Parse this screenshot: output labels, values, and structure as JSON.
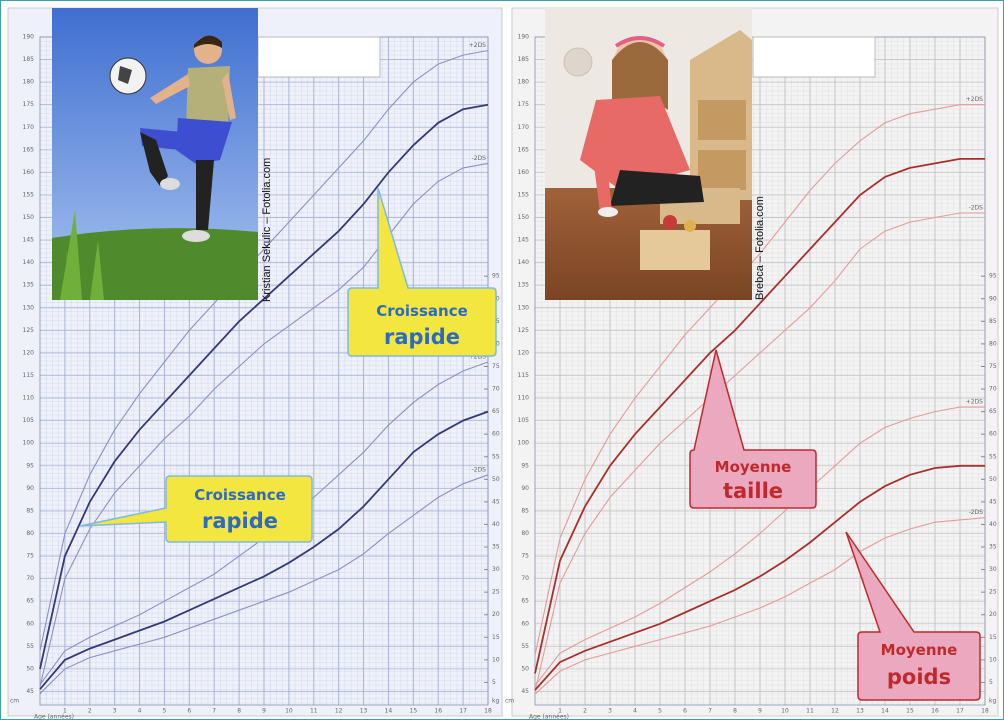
{
  "chart_data": [
    {
      "type": "line",
      "xlabel": "Age (années)",
      "ylabel": "cm",
      "y2label": "kg",
      "x": [
        0,
        1,
        2,
        3,
        4,
        5,
        6,
        7,
        8,
        9,
        10,
        11,
        12,
        13,
        14,
        15,
        16,
        17,
        18
      ],
      "xlim": [
        0,
        18
      ],
      "xticks": [
        1,
        2,
        3,
        4,
        5,
        6,
        7,
        8,
        9,
        10,
        11,
        12,
        13,
        14,
        15,
        16,
        17,
        18
      ],
      "ylim": [
        42,
        190
      ],
      "yticks": [
        45,
        50,
        55,
        60,
        65,
        70,
        75,
        80,
        85,
        90,
        95,
        100,
        105,
        110,
        115,
        120,
        125,
        130,
        135,
        140,
        145,
        150,
        155,
        160,
        165,
        170,
        175,
        180,
        185,
        190
      ],
      "y2lim": [
        0,
        148
      ],
      "y2ticks": [
        5,
        10,
        15,
        20,
        25,
        30,
        35,
        40,
        45,
        50,
        55,
        60,
        65,
        70,
        75,
        80,
        85,
        90,
        95
      ],
      "grid": true,
      "background": "#eef1fa",
      "grid_color": "#aab3d6",
      "series": [
        {
          "name": "+2DS",
          "color": "#8a91c4",
          "values": [
            54,
            80,
            93,
            103,
            111,
            118,
            125,
            131,
            137,
            143,
            149,
            155,
            161,
            167,
            174,
            180,
            184,
            186,
            187
          ]
        },
        {
          "color": "#343a78",
          "values": [
            50,
            75,
            87,
            96,
            103,
            109,
            115,
            121,
            127,
            132,
            137,
            142,
            147,
            153,
            160,
            166,
            171,
            174,
            175
          ]
        },
        {
          "name": "-2DS",
          "color": "#8a91c4",
          "values": [
            46,
            70,
            81,
            89,
            95,
            101,
            106,
            112,
            117,
            122,
            126,
            130,
            134,
            139,
            146,
            153,
            158,
            161,
            162
          ]
        },
        {
          "name": "+2DS",
          "color": "#8a91c4",
          "axis": "y2",
          "values": [
            4.5,
            12,
            15,
            17.5,
            20,
            23,
            26,
            29,
            33,
            37,
            41,
            46,
            51,
            56,
            62,
            67,
            71,
            74,
            76
          ]
        },
        {
          "color": "#343a78",
          "axis": "y2",
          "values": [
            3.5,
            10,
            12.5,
            14.5,
            16.5,
            18.5,
            21,
            23.5,
            26,
            28.5,
            31.5,
            35,
            39,
            44,
            50,
            56,
            60,
            63,
            65
          ]
        },
        {
          "name": "-2DS",
          "color": "#8a91c4",
          "axis": "y2",
          "values": [
            2.5,
            8,
            10.5,
            12,
            13.5,
            15,
            17,
            19,
            21,
            23,
            25,
            27.5,
            30,
            33.5,
            38,
            42,
            46,
            49,
            51
          ]
        }
      ],
      "credit": "Kristian Sekulic – Fotolia.com",
      "annotations": [
        {
          "line1": "Croissance",
          "line2": "rapide"
        },
        {
          "line1": "Croissance",
          "line2": "rapide"
        }
      ]
    },
    {
      "type": "line",
      "xlabel": "Age (années)",
      "ylabel": "cm",
      "y2label": "kg",
      "x": [
        0,
        1,
        2,
        3,
        4,
        5,
        6,
        7,
        8,
        9,
        10,
        11,
        12,
        13,
        14,
        15,
        16,
        17,
        18
      ],
      "xlim": [
        0,
        18
      ],
      "xticks": [
        1,
        2,
        3,
        4,
        5,
        6,
        7,
        8,
        9,
        10,
        11,
        12,
        13,
        14,
        15,
        16,
        17,
        18
      ],
      "ylim": [
        42,
        190
      ],
      "yticks": [
        45,
        50,
        55,
        60,
        65,
        70,
        75,
        80,
        85,
        90,
        95,
        100,
        105,
        110,
        115,
        120,
        125,
        130,
        135,
        140,
        145,
        150,
        155,
        160,
        165,
        170,
        175,
        180,
        185,
        190
      ],
      "y2lim": [
        0,
        148
      ],
      "y2ticks": [
        5,
        10,
        15,
        20,
        25,
        30,
        35,
        40,
        45,
        50,
        55,
        60,
        65,
        70,
        75,
        80,
        85,
        90,
        95
      ],
      "grid": true,
      "background": "#f3f3f3",
      "grid_color": "#c4c4c4",
      "series": [
        {
          "name": "+2DS",
          "color": "#e59a9a",
          "values": [
            53,
            79,
            92,
            102,
            110,
            117,
            124,
            130,
            136,
            142,
            149,
            156,
            162,
            167,
            171,
            173,
            174,
            175,
            175
          ]
        },
        {
          "color": "#a8302c",
          "values": [
            49,
            74,
            86,
            95,
            102,
            108,
            114,
            120,
            125,
            131,
            137,
            143,
            149,
            155,
            159,
            161,
            162,
            163,
            163
          ]
        },
        {
          "name": "-2DS",
          "color": "#e59a9a",
          "values": [
            45,
            69,
            80,
            88,
            94,
            100,
            105,
            110,
            115,
            120,
            125,
            130,
            136,
            143,
            147,
            149,
            150,
            151,
            151
          ]
        },
        {
          "name": "+2DS",
          "color": "#e59a9a",
          "axis": "y2",
          "values": [
            4.3,
            11.5,
            14.5,
            17,
            19.5,
            22.5,
            26,
            29.5,
            33.5,
            38,
            43,
            48,
            53,
            58,
            61.5,
            63.5,
            65,
            66,
            66
          ]
        },
        {
          "color": "#a8302c",
          "axis": "y2",
          "values": [
            3.3,
            9.5,
            12,
            14,
            16,
            18,
            20.5,
            23,
            25.5,
            28.5,
            32,
            36,
            40.5,
            45,
            48.5,
            51,
            52.5,
            53,
            53
          ]
        },
        {
          "name": "-2DS",
          "color": "#e59a9a",
          "axis": "y2",
          "values": [
            2.4,
            7.5,
            10,
            11.5,
            13,
            14.5,
            16,
            17.5,
            19.5,
            21.5,
            24,
            27,
            30,
            34,
            37,
            39,
            40.5,
            41,
            41.5
          ]
        }
      ],
      "credit": "Brebca – Fotolia.com",
      "annotations": [
        {
          "line1": "Moyenne",
          "line2": "taille"
        },
        {
          "line1": "Moyenne",
          "line2": "poids"
        }
      ]
    }
  ]
}
